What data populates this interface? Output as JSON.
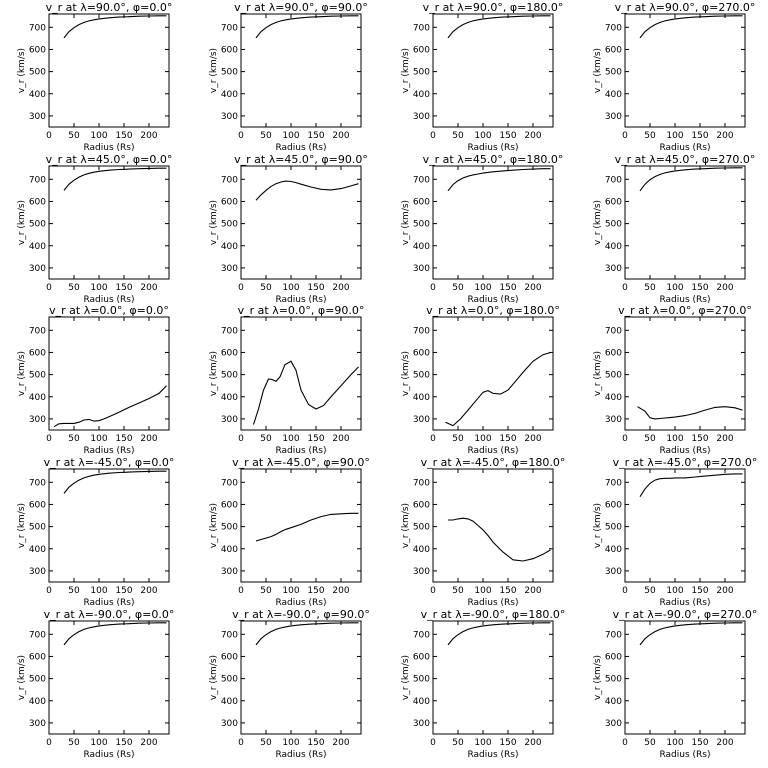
{
  "chart_data": {
    "type": "line",
    "xlabel": "Radius (Rs)",
    "ylabel": "v_r (km/s)",
    "xlim": [
      0,
      240
    ],
    "ylim": [
      250,
      760
    ],
    "xticks": [
      0,
      50,
      100,
      150,
      200
    ],
    "yticks": [
      300,
      400,
      500,
      600,
      700
    ],
    "grid": false,
    "panels": [
      {
        "title": "v_r at λ=90.0°, φ=0.0°",
        "x": [
          30,
          40,
          50,
          60,
          70,
          80,
          90,
          100,
          120,
          140,
          160,
          180,
          200,
          220,
          235
        ],
        "y": [
          652,
          680,
          698,
          712,
          722,
          729,
          734,
          738,
          743,
          746,
          748,
          750,
          751,
          752,
          752
        ]
      },
      {
        "title": "v_r at λ=90.0°, φ=90.0°",
        "x": [
          30,
          40,
          50,
          60,
          70,
          80,
          90,
          100,
          120,
          140,
          160,
          180,
          200,
          220,
          235
        ],
        "y": [
          652,
          680,
          698,
          712,
          722,
          729,
          734,
          738,
          743,
          746,
          748,
          750,
          751,
          752,
          752
        ]
      },
      {
        "title": "v_r at λ=90.0°, φ=180.0°",
        "x": [
          30,
          40,
          50,
          60,
          70,
          80,
          90,
          100,
          120,
          140,
          160,
          180,
          200,
          220,
          235
        ],
        "y": [
          652,
          680,
          698,
          712,
          722,
          729,
          734,
          738,
          743,
          746,
          748,
          750,
          751,
          752,
          752
        ]
      },
      {
        "title": "v_r at λ=90.0°, φ=270.0°",
        "x": [
          30,
          40,
          50,
          60,
          70,
          80,
          90,
          100,
          120,
          140,
          160,
          180,
          200,
          220,
          235
        ],
        "y": [
          652,
          680,
          698,
          712,
          722,
          729,
          734,
          738,
          743,
          746,
          748,
          750,
          751,
          752,
          752
        ]
      },
      {
        "title": "v_r at λ=45.0°, φ=0.0°",
        "x": [
          30,
          40,
          50,
          60,
          70,
          80,
          90,
          100,
          120,
          140,
          160,
          180,
          200,
          220,
          235
        ],
        "y": [
          650,
          678,
          696,
          710,
          720,
          727,
          732,
          736,
          741,
          744,
          746,
          748,
          749,
          750,
          750
        ]
      },
      {
        "title": "v_r at λ=45.0°, φ=90.0°",
        "x": [
          30,
          40,
          50,
          60,
          70,
          80,
          90,
          100,
          110,
          120,
          140,
          160,
          180,
          200,
          220,
          235
        ],
        "y": [
          605,
          630,
          650,
          668,
          680,
          688,
          692,
          690,
          685,
          678,
          665,
          655,
          652,
          658,
          670,
          680
        ]
      },
      {
        "title": "v_r at λ=45.0°, φ=180.0°",
        "x": [
          30,
          40,
          50,
          60,
          70,
          80,
          90,
          100,
          120,
          140,
          160,
          180,
          200,
          220,
          235
        ],
        "y": [
          648,
          676,
          694,
          706,
          714,
          720,
          724,
          728,
          734,
          738,
          741,
          744,
          746,
          748,
          748
        ]
      },
      {
        "title": "v_r at λ=45.0°, φ=270.0°",
        "x": [
          30,
          40,
          50,
          60,
          70,
          80,
          90,
          100,
          120,
          140,
          160,
          180,
          200,
          220,
          235
        ],
        "y": [
          648,
          678,
          698,
          712,
          722,
          729,
          734,
          738,
          743,
          746,
          748,
          750,
          751,
          752,
          752
        ]
      },
      {
        "title": "v_r at λ=0.0°, φ=0.0°",
        "x": [
          10,
          20,
          30,
          50,
          60,
          70,
          80,
          90,
          100,
          110,
          120,
          140,
          160,
          180,
          200,
          220,
          235
        ],
        "y": [
          265,
          278,
          280,
          280,
          285,
          295,
          298,
          290,
          292,
          300,
          310,
          330,
          352,
          372,
          392,
          415,
          450
        ]
      },
      {
        "title": "v_r at λ=0.0°, φ=90.0°",
        "x": [
          25,
          35,
          45,
          55,
          62,
          70,
          78,
          88,
          100,
          110,
          120,
          135,
          150,
          165,
          180,
          200,
          220,
          235
        ],
        "y": [
          275,
          345,
          430,
          480,
          478,
          470,
          490,
          545,
          560,
          520,
          430,
          365,
          345,
          360,
          400,
          450,
          500,
          535
        ]
      },
      {
        "title": "v_r at λ=0.0°, φ=180.0°",
        "x": [
          25,
          40,
          55,
          70,
          85,
          100,
          110,
          120,
          135,
          150,
          165,
          180,
          200,
          220,
          235
        ],
        "y": [
          285,
          270,
          300,
          340,
          380,
          420,
          428,
          415,
          412,
          430,
          470,
          510,
          560,
          590,
          600
        ]
      },
      {
        "title": "v_r at λ=0.0°, φ=270.0°",
        "x": [
          25,
          40,
          50,
          60,
          70,
          80,
          90,
          100,
          120,
          140,
          160,
          180,
          200,
          220,
          235
        ],
        "y": [
          355,
          335,
          305,
          300,
          302,
          304,
          306,
          308,
          315,
          325,
          340,
          352,
          355,
          350,
          340
        ]
      },
      {
        "title": "v_r at λ=-45.0°, φ=0.0°",
        "x": [
          30,
          40,
          50,
          60,
          70,
          80,
          90,
          100,
          120,
          140,
          160,
          180,
          200,
          220,
          235
        ],
        "y": [
          650,
          678,
          696,
          710,
          720,
          727,
          732,
          736,
          741,
          744,
          746,
          748,
          749,
          750,
          750
        ]
      },
      {
        "title": "v_r at λ=-45.0°, φ=90.0°",
        "x": [
          30,
          40,
          50,
          60,
          70,
          80,
          90,
          100,
          120,
          140,
          160,
          180,
          200,
          220,
          235
        ],
        "y": [
          435,
          442,
          448,
          455,
          465,
          478,
          488,
          495,
          510,
          530,
          545,
          555,
          558,
          560,
          560
        ]
      },
      {
        "title": "v_r at λ=-45.0°, φ=180.0°",
        "x": [
          30,
          40,
          50,
          60,
          70,
          80,
          90,
          100,
          110,
          120,
          140,
          160,
          180,
          200,
          220,
          235
        ],
        "y": [
          530,
          530,
          535,
          538,
          535,
          525,
          505,
          485,
          460,
          430,
          385,
          350,
          345,
          355,
          375,
          395
        ]
      },
      {
        "title": "v_r at λ=-45.0°, φ=270.0°",
        "x": [
          30,
          40,
          50,
          60,
          70,
          80,
          90,
          100,
          120,
          140,
          160,
          180,
          200,
          220,
          235
        ],
        "y": [
          635,
          670,
          695,
          710,
          716,
          718,
          718,
          720,
          720,
          724,
          728,
          732,
          736,
          738,
          738
        ]
      },
      {
        "title": "v_r at λ=-90.0°, φ=0.0°",
        "x": [
          30,
          40,
          50,
          60,
          70,
          80,
          90,
          100,
          120,
          140,
          160,
          180,
          200,
          220,
          235
        ],
        "y": [
          652,
          680,
          698,
          712,
          722,
          729,
          734,
          738,
          743,
          746,
          748,
          750,
          751,
          752,
          752
        ]
      },
      {
        "title": "v_r at λ=-90.0°, φ=90.0°",
        "x": [
          30,
          40,
          50,
          60,
          70,
          80,
          90,
          100,
          120,
          140,
          160,
          180,
          200,
          220,
          235
        ],
        "y": [
          652,
          680,
          698,
          712,
          722,
          729,
          734,
          738,
          743,
          746,
          748,
          750,
          751,
          752,
          752
        ]
      },
      {
        "title": "v_r at λ=-90.0°, φ=180.0°",
        "x": [
          30,
          40,
          50,
          60,
          70,
          80,
          90,
          100,
          120,
          140,
          160,
          180,
          200,
          220,
          235
        ],
        "y": [
          652,
          680,
          698,
          712,
          722,
          729,
          734,
          738,
          743,
          746,
          748,
          750,
          751,
          752,
          752
        ]
      },
      {
        "title": "v_r at λ=-90.0°, φ=270.0°",
        "x": [
          30,
          40,
          50,
          60,
          70,
          80,
          90,
          100,
          120,
          140,
          160,
          180,
          200,
          220,
          235
        ],
        "y": [
          652,
          680,
          698,
          712,
          722,
          729,
          734,
          738,
          743,
          746,
          748,
          750,
          751,
          752,
          752
        ]
      }
    ]
  }
}
